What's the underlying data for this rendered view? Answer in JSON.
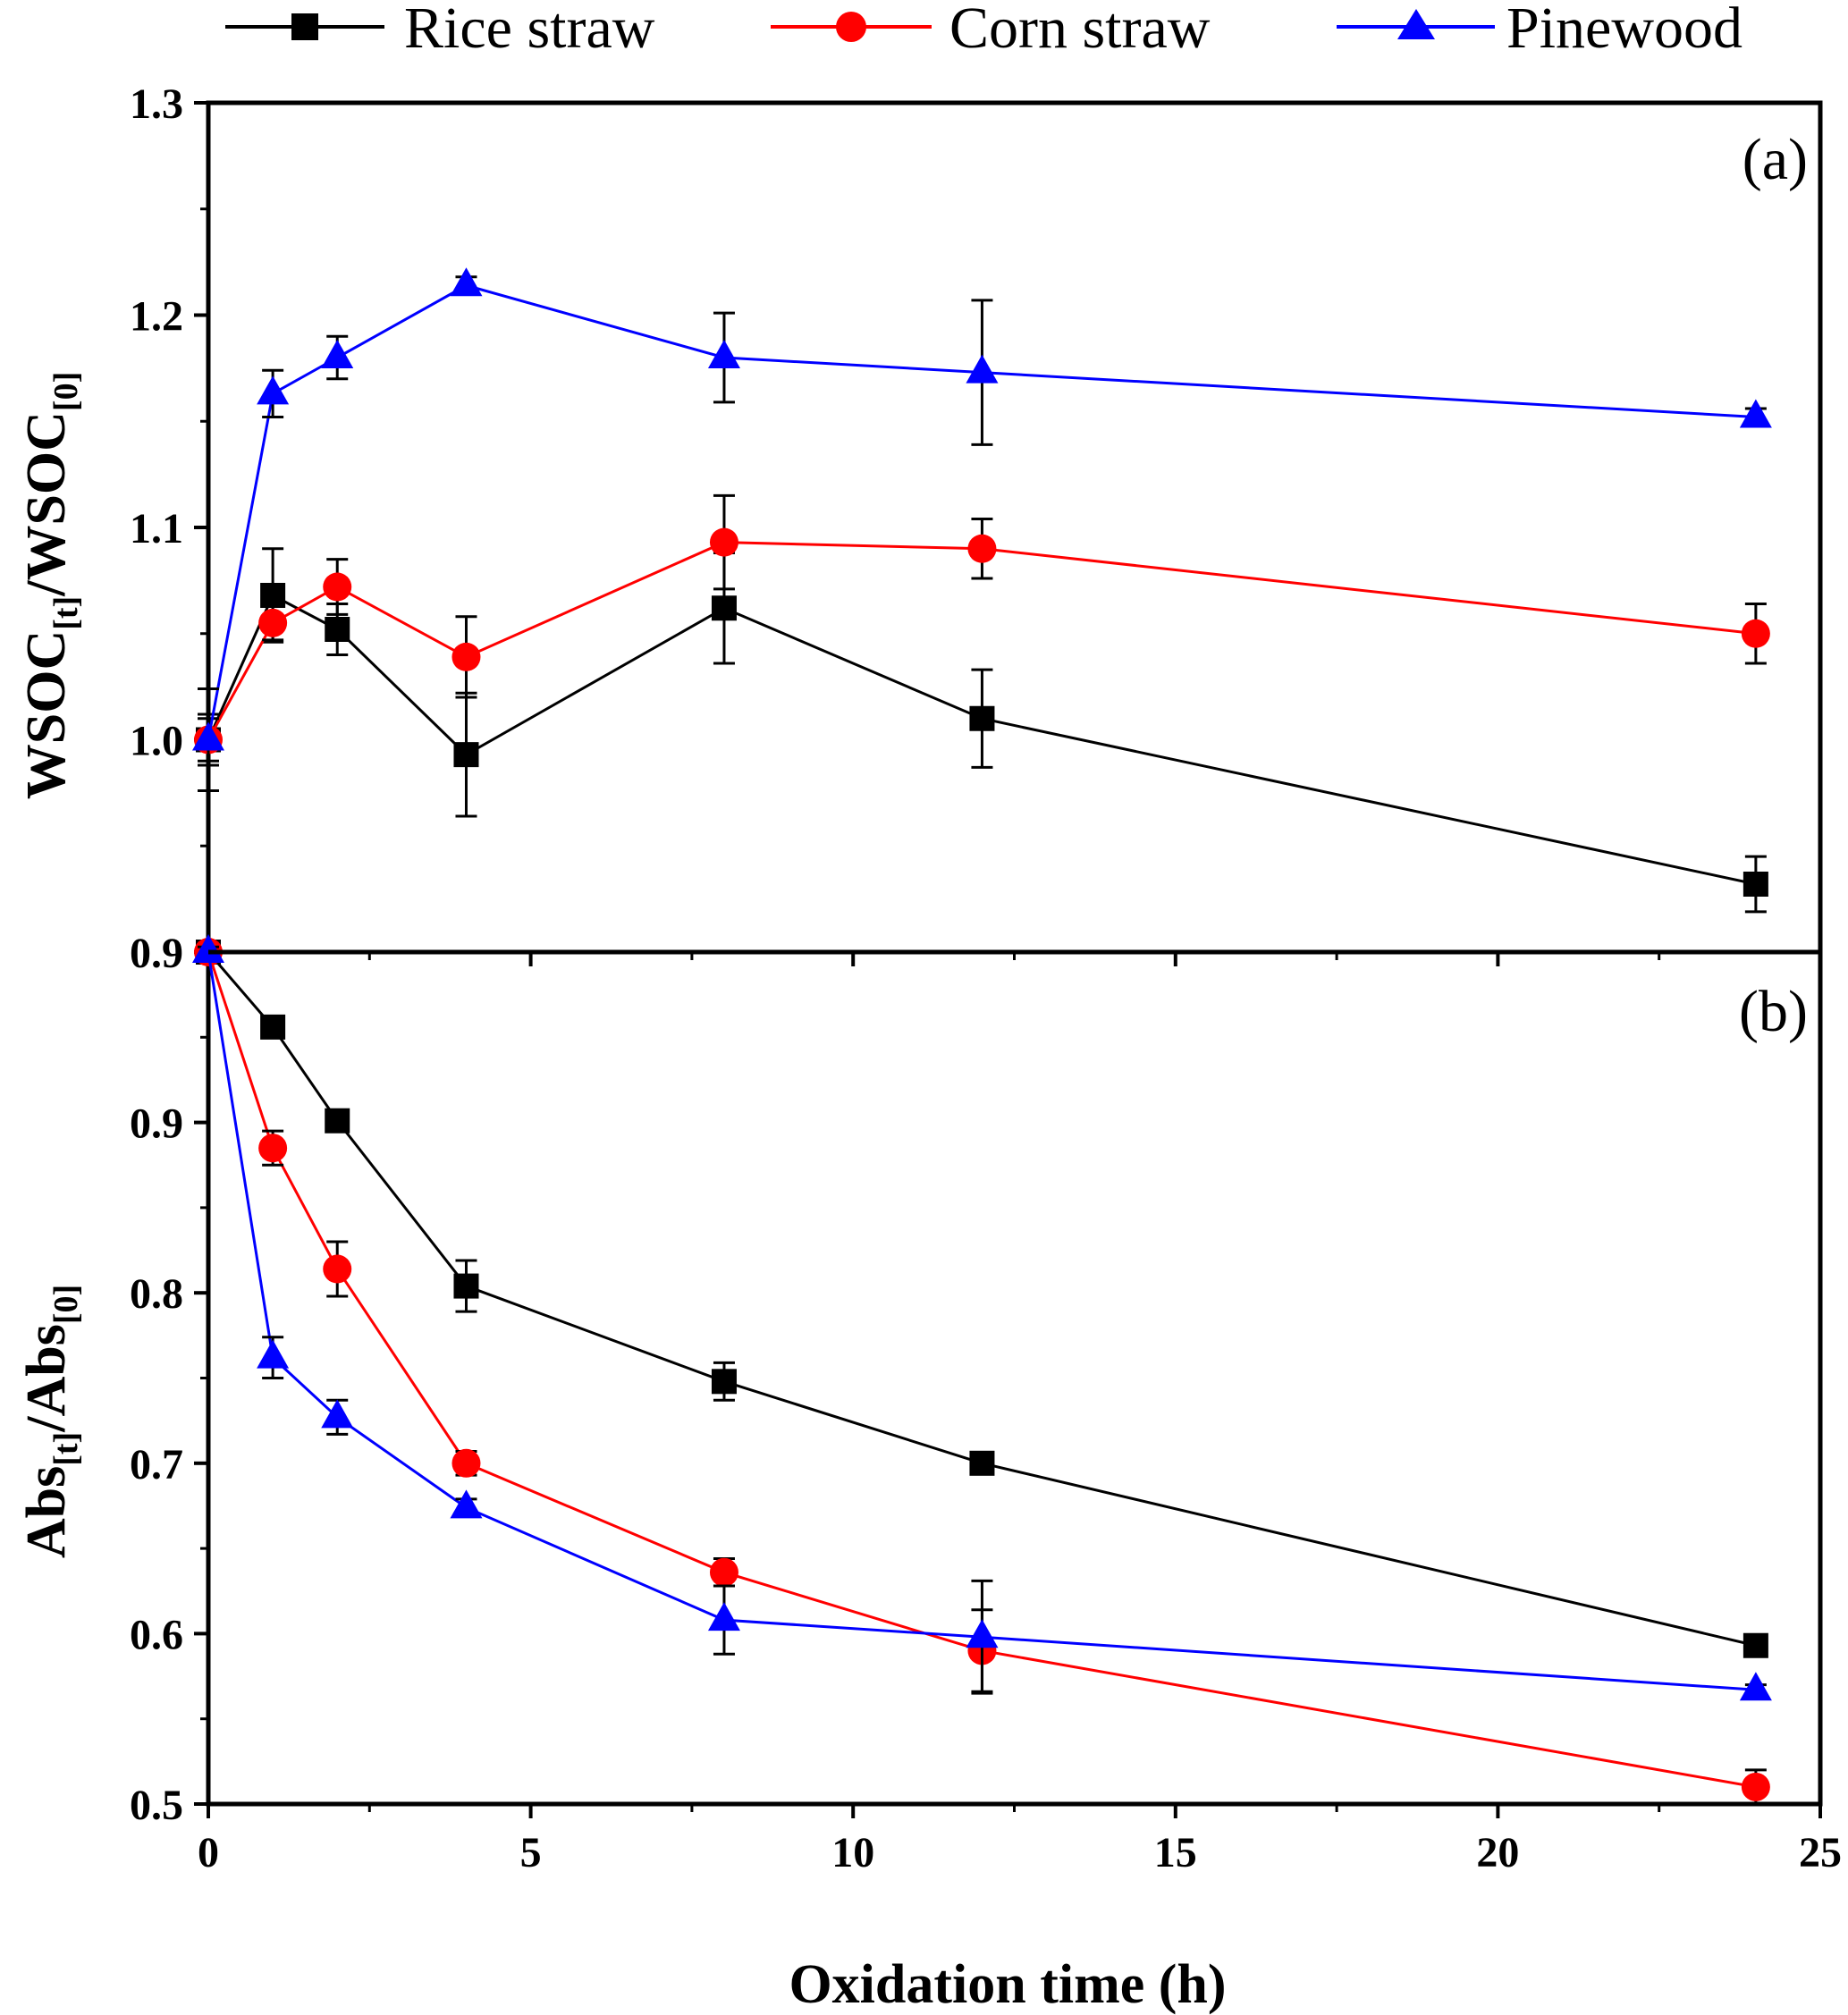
{
  "colors": {
    "rice_straw": "#000000",
    "corn_straw": "#ff0000",
    "pinewood": "#0000ff",
    "axis": "#000000"
  },
  "legend": {
    "placement": "top-center",
    "items": [
      {
        "name": "Rice straw",
        "marker": "square",
        "color": "#000000"
      },
      {
        "name": "Corn straw",
        "marker": "circle",
        "color": "#ff0000"
      },
      {
        "name": "Pinewood",
        "marker": "triangle",
        "color": "#0000ff"
      }
    ]
  },
  "chart_data": [
    {
      "type": "line",
      "panel_label": "(a)",
      "ylabel": {
        "main1": "WSOC",
        "sub1": "[t]",
        "main2": "/WSOC",
        "sub2": "[0]"
      },
      "xlabel": "",
      "xlim": [
        0,
        25
      ],
      "ylim": [
        0.9,
        1.3
      ],
      "yticks": [
        "0.9",
        "1.0",
        "1.1",
        "1.2",
        "1.3"
      ],
      "ytick_values": [
        0.9,
        1.0,
        1.1,
        1.2,
        1.3
      ],
      "grid": false,
      "x": [
        0,
        1,
        2,
        4,
        8,
        12,
        24
      ],
      "series": [
        {
          "name": "Rice straw",
          "marker": "square",
          "color": "#000000",
          "values": [
            1.0,
            1.068,
            1.052,
            0.993,
            1.062,
            1.01,
            0.932
          ],
          "errors": [
            0.012,
            0.022,
            0.012,
            0.029,
            0.026,
            0.023,
            0.013
          ]
        },
        {
          "name": "Corn straw",
          "marker": "circle",
          "color": "#ff0000",
          "values": [
            1.0,
            1.055,
            1.072,
            1.039,
            1.093,
            1.09,
            1.05
          ],
          "errors": [
            0.01,
            0.008,
            0.013,
            0.019,
            0.022,
            0.014,
            0.014
          ]
        },
        {
          "name": "Pinewood",
          "marker": "triangle",
          "color": "#0000ff",
          "values": [
            1.0,
            1.163,
            1.18,
            1.214,
            1.18,
            1.173,
            1.152
          ],
          "errors": [
            0.024,
            0.011,
            0.01,
            0.004,
            0.021,
            0.034,
            0.004
          ]
        }
      ]
    },
    {
      "type": "line",
      "panel_label": "(b)",
      "ylabel": {
        "main1": "Abs",
        "sub1": "[t]",
        "main2": "/Abs",
        "sub2": "[0]"
      },
      "xlabel": "Oxidation time (h)",
      "xlim": [
        0,
        25
      ],
      "xticks": [
        "0",
        "5",
        "10",
        "15",
        "20",
        "25"
      ],
      "xtick_values": [
        0,
        5,
        10,
        15,
        20,
        25
      ],
      "ylim": [
        0.5,
        1.0
      ],
      "yticks": [
        "0.5",
        "0.6",
        "0.7",
        "0.8",
        "0.9"
      ],
      "ytick_values": [
        0.5,
        0.6,
        0.7,
        0.8,
        0.9
      ],
      "grid": false,
      "x": [
        0,
        1,
        2,
        4,
        8,
        12,
        24
      ],
      "series": [
        {
          "name": "Rice straw",
          "marker": "square",
          "color": "#000000",
          "values": [
            1.0,
            0.956,
            0.901,
            0.804,
            0.748,
            0.7,
            0.593
          ],
          "errors": [
            0.003,
            0.006,
            0.006,
            0.015,
            0.011,
            0.005,
            0.005
          ]
        },
        {
          "name": "Corn straw",
          "marker": "circle",
          "color": "#ff0000",
          "values": [
            1.0,
            0.885,
            0.814,
            0.7,
            0.636,
            0.59,
            0.51
          ],
          "errors": [
            0.003,
            0.01,
            0.016,
            0.007,
            0.008,
            0.024,
            0.01
          ]
        },
        {
          "name": "Pinewood",
          "marker": "triangle",
          "color": "#0000ff",
          "values": [
            1.0,
            0.762,
            0.727,
            0.674,
            0.608,
            0.598,
            0.567
          ],
          "errors": [
            0.003,
            0.012,
            0.01,
            0.005,
            0.02,
            0.033,
            0.003
          ]
        }
      ]
    }
  ]
}
